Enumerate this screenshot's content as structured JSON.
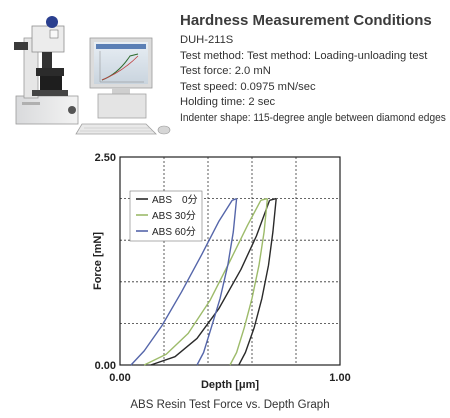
{
  "conditions": {
    "title": "Hardness Measurement Conditions",
    "lines": [
      "DUH-211S",
      "Test method: Test method: Loading-unloading test",
      "Test force: 2.0 mN",
      "Test speed: 0.0975 mN/sec",
      "Holding time: 2 sec",
      "Indenter shape: 115-degree angle between diamond edges"
    ]
  },
  "photo": {
    "subject": "DUH-211S instrument with computer monitor and keyboard"
  },
  "chart_data": {
    "type": "line",
    "title": "",
    "caption": "ABS Resin Test Force vs. Depth Graph",
    "xlabel": "Depth [μm]",
    "ylabel": "Force [mN]",
    "xlim": [
      0,
      1.0
    ],
    "ylim": [
      0,
      2.5
    ],
    "x_ticks": [
      "0.00",
      "1.00"
    ],
    "y_ticks": [
      "0.00",
      "2.50"
    ],
    "grid": true,
    "legend_position": "top-left",
    "series": [
      {
        "name": "ABS　0分",
        "color": "#2a2a2a",
        "loading": [
          [
            0.14,
            0
          ],
          [
            0.25,
            0.1
          ],
          [
            0.35,
            0.32
          ],
          [
            0.45,
            0.68
          ],
          [
            0.55,
            1.15
          ],
          [
            0.62,
            1.55
          ],
          [
            0.68,
            1.98
          ]
        ],
        "holding": [
          [
            0.68,
            1.98
          ],
          [
            0.71,
            2.0
          ]
        ],
        "unloading": [
          [
            0.71,
            2.0
          ],
          [
            0.695,
            1.6
          ],
          [
            0.675,
            1.2
          ],
          [
            0.645,
            0.8
          ],
          [
            0.61,
            0.45
          ],
          [
            0.57,
            0.15
          ],
          [
            0.54,
            0
          ]
        ]
      },
      {
        "name": "ABS 30分",
        "color": "#9dbb6a",
        "loading": [
          [
            0.11,
            0
          ],
          [
            0.21,
            0.13
          ],
          [
            0.31,
            0.38
          ],
          [
            0.41,
            0.78
          ],
          [
            0.5,
            1.25
          ],
          [
            0.58,
            1.68
          ],
          [
            0.64,
            1.98
          ]
        ],
        "holding": [
          [
            0.64,
            1.98
          ],
          [
            0.67,
            2.0
          ]
        ],
        "unloading": [
          [
            0.67,
            2.0
          ],
          [
            0.655,
            1.6
          ],
          [
            0.632,
            1.2
          ],
          [
            0.6,
            0.8
          ],
          [
            0.565,
            0.45
          ],
          [
            0.53,
            0.15
          ],
          [
            0.5,
            0
          ]
        ]
      },
      {
        "name": "ABS 60分",
        "color": "#5566aa",
        "loading": [
          [
            0.05,
            0
          ],
          [
            0.11,
            0.17
          ],
          [
            0.19,
            0.47
          ],
          [
            0.28,
            0.88
          ],
          [
            0.37,
            1.32
          ],
          [
            0.45,
            1.73
          ],
          [
            0.51,
            1.98
          ]
        ],
        "holding": [
          [
            0.51,
            1.98
          ],
          [
            0.53,
            2.0
          ]
        ],
        "unloading": [
          [
            0.53,
            2.0
          ],
          [
            0.515,
            1.6
          ],
          [
            0.49,
            1.2
          ],
          [
            0.455,
            0.8
          ],
          [
            0.415,
            0.45
          ],
          [
            0.38,
            0.15
          ],
          [
            0.35,
            0
          ]
        ]
      }
    ]
  }
}
